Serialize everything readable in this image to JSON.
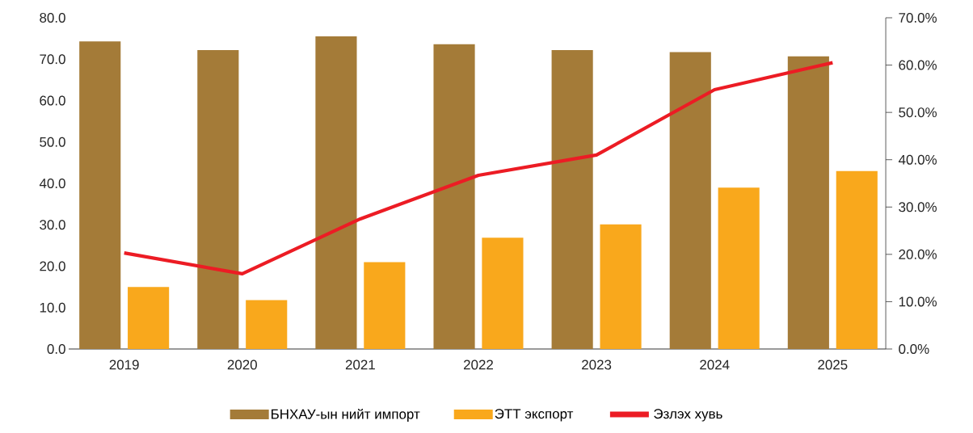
{
  "chart_data": {
    "type": "bar",
    "categories": [
      "2019",
      "2020",
      "2021",
      "2022",
      "2023",
      "2024",
      "2025"
    ],
    "series": [
      {
        "name": "БНХАУ-ын нийт импорт",
        "color": "#a47b38",
        "values": [
          74.3,
          72.2,
          75.5,
          73.6,
          72.2,
          71.7,
          70.7
        ]
      },
      {
        "name": "ЭТТ экспорт",
        "color": "#f9a81c",
        "values": [
          15.0,
          11.8,
          21.0,
          26.9,
          30.1,
          39.0,
          43.0
        ]
      },
      {
        "name": "Эзлэх хувь",
        "type": "line",
        "axis": "y2",
        "color": "#ec1c24",
        "values": [
          20.3,
          15.9,
          27.5,
          36.7,
          41.0,
          54.8,
          60.5
        ]
      }
    ],
    "ylim": [
      0,
      80
    ],
    "yticks": [
      {
        "value": 0,
        "label": "0.0"
      },
      {
        "value": 10,
        "label": "10.0"
      },
      {
        "value": 20,
        "label": "20.0"
      },
      {
        "value": 30,
        "label": "30.0"
      },
      {
        "value": 40,
        "label": "40.0"
      },
      {
        "value": 50,
        "label": "50.0"
      },
      {
        "value": 60,
        "label": "60.0"
      },
      {
        "value": 70,
        "label": "70.0"
      },
      {
        "value": 80,
        "label": "80.0"
      }
    ],
    "y2lim": [
      0,
      70
    ],
    "y2ticks": [
      {
        "value": 0,
        "label": "0.0%"
      },
      {
        "value": 10,
        "label": "10.0%"
      },
      {
        "value": 20,
        "label": "20.0%"
      },
      {
        "value": 30,
        "label": "30.0%"
      },
      {
        "value": 40,
        "label": "40.0%"
      },
      {
        "value": 50,
        "label": "50.0%"
      },
      {
        "value": 60,
        "label": "60.0%"
      },
      {
        "value": 70,
        "label": "70.0%"
      }
    ],
    "legend": "bottom"
  }
}
